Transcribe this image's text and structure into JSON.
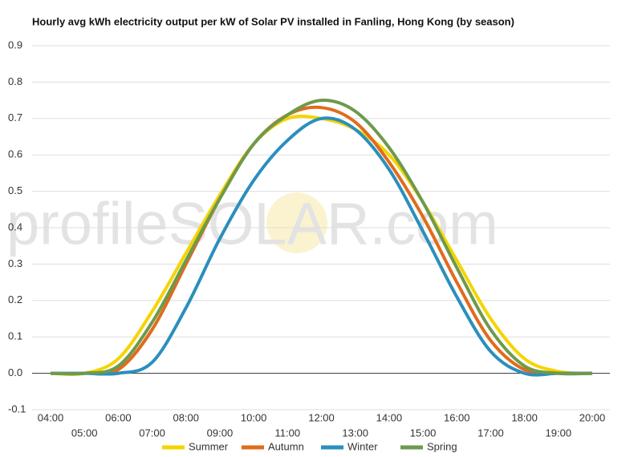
{
  "chart_data": {
    "type": "line",
    "title": "Hourly avg kWh electricity output per kW of Solar PV installed in Fanling, Hong Kong (by season)",
    "watermark": "profileSOLAR.com",
    "categories": [
      "04:00",
      "05:00",
      "06:00",
      "07:00",
      "08:00",
      "09:00",
      "10:00",
      "11:00",
      "12:00",
      "13:00",
      "14:00",
      "15:00",
      "16:00",
      "17:00",
      "18:00",
      "19:00",
      "20:00"
    ],
    "series": [
      {
        "name": "Summer",
        "color": "#f5d400",
        "values": [
          0,
          0,
          0.04,
          0.17,
          0.33,
          0.49,
          0.63,
          0.7,
          0.7,
          0.67,
          0.6,
          0.47,
          0.31,
          0.15,
          0.04,
          0.005,
          0
        ]
      },
      {
        "name": "Autumn",
        "color": "#e06c1b",
        "values": [
          0,
          0,
          0.01,
          0.12,
          0.3,
          0.48,
          0.63,
          0.71,
          0.73,
          0.69,
          0.58,
          0.43,
          0.25,
          0.09,
          0.01,
          0,
          0
        ]
      },
      {
        "name": "Winter",
        "color": "#2a8fbd",
        "values": [
          0,
          0,
          0,
          0.03,
          0.18,
          0.37,
          0.53,
          0.64,
          0.7,
          0.67,
          0.56,
          0.39,
          0.21,
          0.06,
          0,
          0,
          0
        ]
      },
      {
        "name": "Spring",
        "color": "#6d9a4c",
        "values": [
          0,
          0,
          0.02,
          0.14,
          0.31,
          0.48,
          0.63,
          0.71,
          0.75,
          0.72,
          0.62,
          0.47,
          0.29,
          0.12,
          0.02,
          0,
          0
        ]
      }
    ],
    "ylim": [
      -0.1,
      0.9
    ],
    "yticks": [
      -0.1,
      {
        "value": 0,
        "label": "0.0"
      },
      0.1,
      0.2,
      0.3,
      0.4,
      0.5,
      0.6,
      0.7,
      0.8,
      0.9
    ],
    "grid": true,
    "legend": "bottom"
  }
}
